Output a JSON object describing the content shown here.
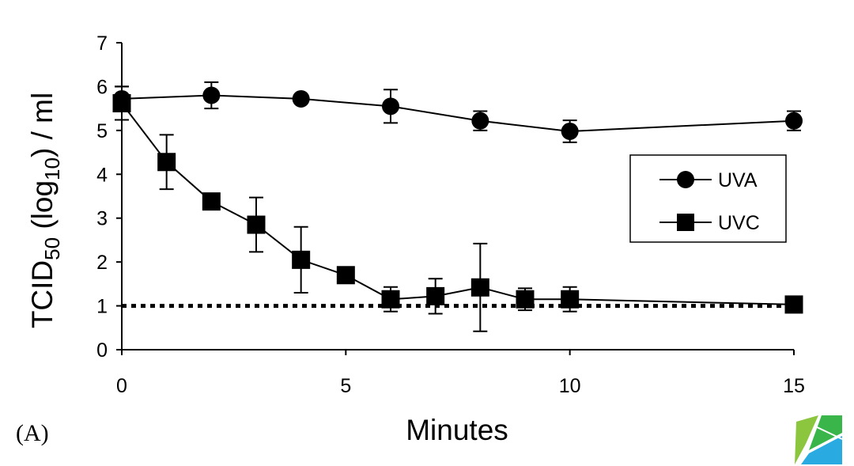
{
  "chart_data": {
    "type": "line",
    "title": "",
    "panel_label": "(A)",
    "xlabel": "Minutes",
    "ylabel": {
      "main": "TCID",
      "sub1": "50",
      "mid": " (log",
      "sub2": "10",
      "end": ") / ml"
    },
    "xlim": [
      0,
      15
    ],
    "ylim": [
      0,
      7
    ],
    "xticks": [
      0,
      5,
      10,
      15
    ],
    "yticks": [
      0,
      1,
      2,
      3,
      4,
      5,
      6,
      7
    ],
    "legend_position": "right",
    "series": [
      {
        "name": "UVA",
        "marker": "circle",
        "color": "#000000",
        "x": [
          0,
          2,
          4,
          6,
          8,
          10,
          15
        ],
        "values": [
          5.72,
          5.8,
          5.72,
          5.55,
          5.22,
          4.98,
          5.22
        ],
        "errors": [
          0.28,
          0.3,
          0.0,
          0.38,
          0.22,
          0.25,
          0.22
        ]
      },
      {
        "name": "UVC",
        "marker": "square",
        "color": "#000000",
        "x": [
          0,
          1,
          2,
          3,
          4,
          5,
          6,
          7,
          8,
          9,
          10,
          15
        ],
        "values": [
          5.62,
          4.28,
          3.38,
          2.85,
          2.05,
          1.7,
          1.15,
          1.22,
          1.42,
          1.15,
          1.15,
          1.03
        ],
        "errors": [
          0.38,
          0.62,
          0.0,
          0.62,
          0.75,
          0.0,
          0.28,
          0.4,
          1.0,
          0.25,
          0.28,
          0.0
        ]
      }
    ],
    "reference_line": {
      "y": 1.0,
      "style": "dotted"
    }
  }
}
